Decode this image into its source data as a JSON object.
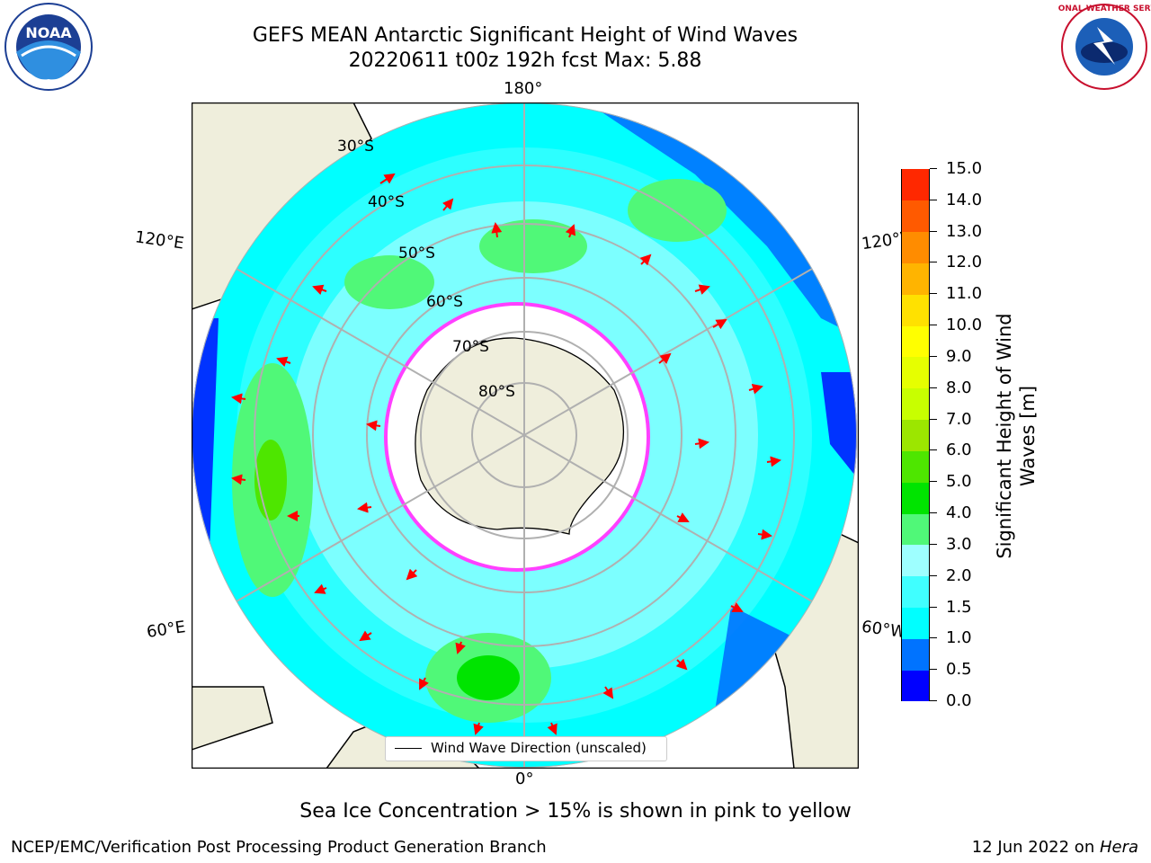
{
  "header": {
    "title_line1": "GEFS MEAN Antarctic Significant Height of Wind Waves",
    "title_line2": "20220611 t00z 192h fcst   Max: 5.88"
  },
  "logos": {
    "left": "noaa-logo",
    "right": "national-weather-service-logo",
    "nws_text": "NATIONAL WEATHER SERVICE",
    "noaa_text": "NOAA"
  },
  "map": {
    "projection": "south-polar-stereographic",
    "longitude_labels": {
      "top": "180°",
      "bottom": "0°",
      "upper_left": "120°E",
      "upper_right": "120°W",
      "lower_left": "60°E",
      "lower_right": "60°W"
    },
    "latitude_labels": [
      "30°S",
      "40°S",
      "50°S",
      "60°S",
      "70°S",
      "80°S"
    ],
    "colors": {
      "land": "#efeedc",
      "ice": "#ffffff",
      "ice_edge": "#ff40ff",
      "arrows": "#ff0000",
      "grid": "#b0b0b0"
    },
    "legend_label": "Wind Wave Direction (unscaled)"
  },
  "colorbar": {
    "label": "Significant Height of Wind Waves [m]",
    "ticks": [
      "0.0",
      "0.5",
      "1.0",
      "1.5",
      "2.0",
      "3.0",
      "4.0",
      "5.0",
      "6.0",
      "7.0",
      "8.0",
      "9.0",
      "10.0",
      "11.0",
      "12.0",
      "13.0",
      "14.0",
      "15.0"
    ],
    "colors": [
      "#0000ff",
      "#0073ff",
      "#00ffff",
      "#40ffff",
      "#9effff",
      "#50f878",
      "#00e400",
      "#4ee600",
      "#9ce600",
      "#c8ff00",
      "#e6ff00",
      "#ffff00",
      "#ffe100",
      "#ffb400",
      "#ff8c00",
      "#ff5a00",
      "#ff2800",
      "#ff0000"
    ]
  },
  "footer": {
    "note": "Sea Ice Concentration > 15% is shown in pink to yellow",
    "credit": "NCEP/EMC/Verification Post Processing Product Generation Branch",
    "date_prefix": "12 Jun 2022 on ",
    "machine": "Hera"
  }
}
